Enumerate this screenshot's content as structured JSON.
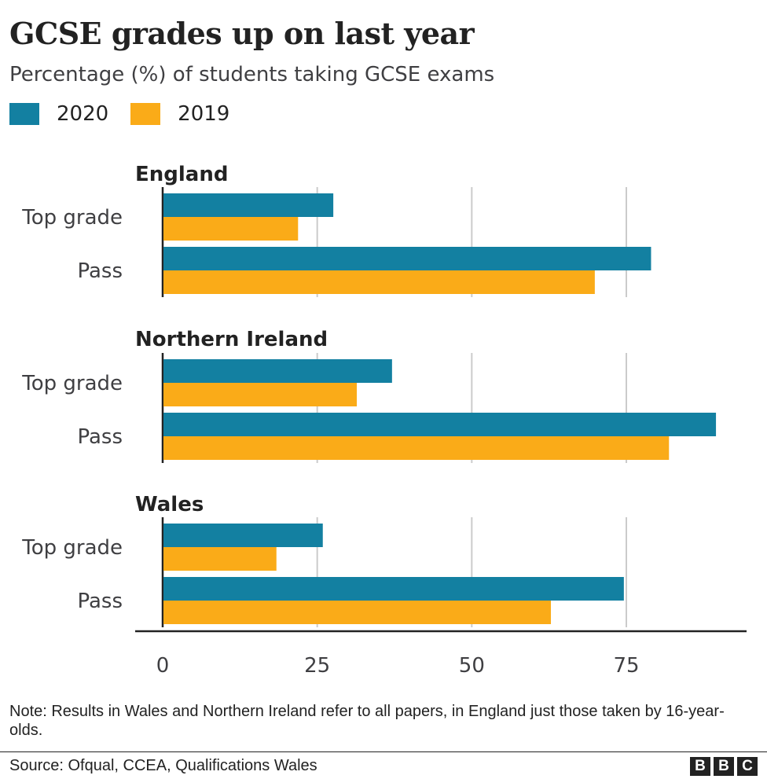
{
  "title": "GCSE grades up on last year",
  "subtitle": "Percentage (%) of students taking GCSE exams",
  "legend": [
    {
      "label": "2020",
      "color": "#1380A1"
    },
    {
      "label": "2019",
      "color": "#FAAB18"
    }
  ],
  "note": "Note: Results in Wales and Northern Ireland refer to all papers, in England just those taken by 16-year-olds.",
  "source": "Source: Ofqual, CCEA, Qualifications Wales",
  "logo": [
    "B",
    "B",
    "C"
  ],
  "chart_data": {
    "type": "bar",
    "orientation": "horizontal",
    "title": "GCSE grades up on last year",
    "subtitle": "Percentage (%) of students taking GCSE exams",
    "xlim": [
      0,
      90
    ],
    "xticks": [
      0,
      25,
      50,
      75
    ],
    "grid": true,
    "legend_position": "top-left",
    "series_names": [
      "2020",
      "2019"
    ],
    "series_colors": [
      "#1380A1",
      "#FAAB18"
    ],
    "groups": [
      {
        "name": "England",
        "categories": [
          {
            "label": "Top grade",
            "values": [
              27.6,
              21.9
            ]
          },
          {
            "label": "Pass",
            "values": [
              79.0,
              69.9
            ]
          }
        ]
      },
      {
        "name": "Northern Ireland",
        "categories": [
          {
            "label": "Top grade",
            "values": [
              37.1,
              31.4
            ]
          },
          {
            "label": "Pass",
            "values": [
              89.5,
              81.9
            ]
          }
        ]
      },
      {
        "name": "Wales",
        "categories": [
          {
            "label": "Top grade",
            "values": [
              25.9,
              18.4
            ]
          },
          {
            "label": "Pass",
            "values": [
              74.6,
              62.8
            ]
          }
        ]
      }
    ]
  }
}
